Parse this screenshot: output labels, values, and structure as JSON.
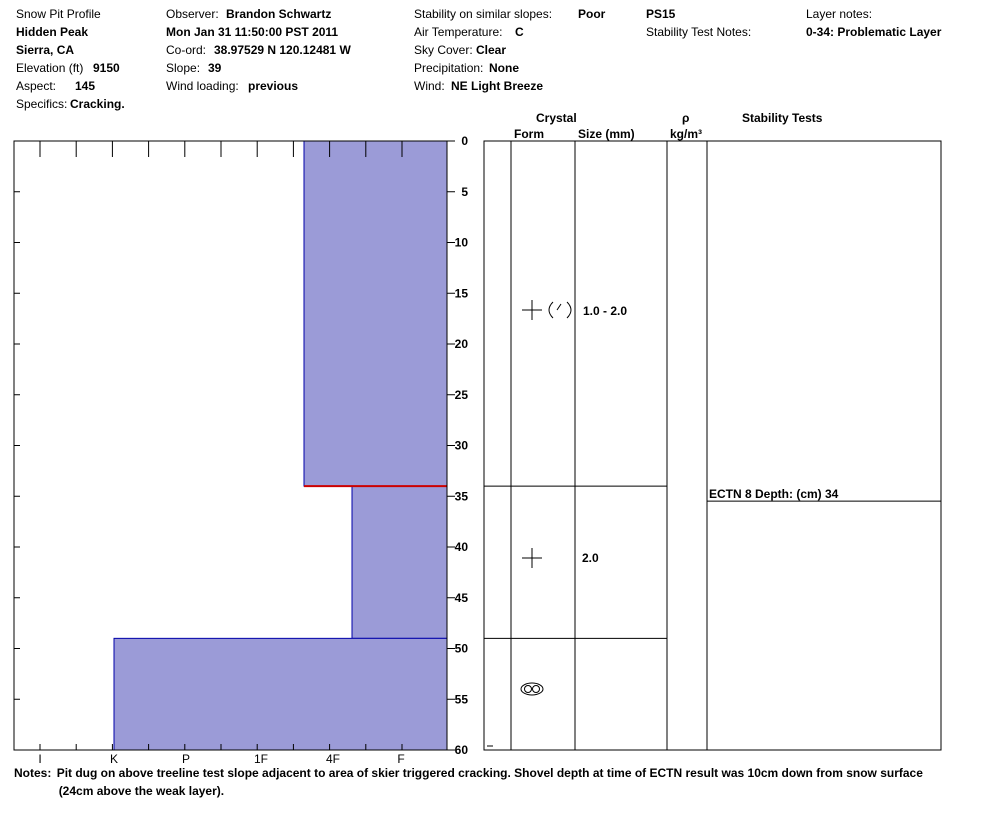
{
  "header": {
    "col1": {
      "title": "Snow Pit Profile",
      "location": "Hidden Peak",
      "region": "Sierra, CA",
      "elevation_label": "Elevation (ft)",
      "elevation_value": "9150",
      "aspect_label": "Aspect:",
      "aspect_value": "145",
      "specifics_label": "Specifics:",
      "specifics_value": "Cracking."
    },
    "col2": {
      "observer_label": "Observer:",
      "observer_value": "Brandon Schwartz",
      "datetime": "Mon Jan 31 11:50:00 PST 2011",
      "coord_label": "Co-ord:",
      "coord_value": "38.97529 N 120.12481 W",
      "slope_label": "Slope:",
      "slope_value": "39",
      "wind_loading_label": "Wind loading:",
      "wind_loading_value": "previous"
    },
    "col3": {
      "stability_label": "Stability on similar slopes:",
      "stability_value": "Poor",
      "air_temp_label": "Air Temperature:",
      "air_temp_value": "C",
      "sky_label": "Sky Cover:",
      "sky_value": "Clear",
      "precip_label": "Precipitation:",
      "precip_value": "None",
      "wind_label": "Wind:",
      "wind_value": "NE Light Breeze"
    },
    "col4": {
      "pit_id": "PS15",
      "stability_notes_label": "Stability Test Notes:"
    },
    "col5": {
      "layer_notes_label": "Layer notes:",
      "layer_notes_value": "0-34: Problematic Layer"
    }
  },
  "table_headers": {
    "crystal": "Crystal",
    "form": "Form",
    "size": "Size (mm)",
    "rho": "ρ",
    "density_unit": "kg/m³",
    "stability_tests": "Stability Tests"
  },
  "chart_data": {
    "type": "bar",
    "orientation": "horizontal-hardness-profile",
    "depth_axis": {
      "label": "",
      "min": 0,
      "max": 60,
      "ticks": [
        0,
        5,
        10,
        15,
        20,
        25,
        30,
        35,
        40,
        45,
        50,
        55,
        60
      ],
      "direction": "down"
    },
    "hardness_axis": {
      "ticks": [
        "I",
        "K",
        "P",
        "1F",
        "4F",
        "F"
      ],
      "direction": "right-to-left"
    },
    "layers": [
      {
        "top": 0,
        "bottom": 34,
        "hardness": "4F+",
        "form_icon": "faceted-rounded",
        "size": "1.0 - 2.0",
        "critical_bottom": true
      },
      {
        "top": 34,
        "bottom": 49,
        "hardness": "F+",
        "form_icon": "precipitation-particles",
        "size": "2.0",
        "critical_bottom": false
      },
      {
        "top": 49,
        "bottom": 60,
        "hardness": "K",
        "form_icon": "melt-forms",
        "size": "",
        "critical_bottom": false
      }
    ],
    "stability_tests": [
      {
        "depth": 34,
        "label": "ECTN 8   Depth: (cm) 34"
      }
    ],
    "colors": {
      "layer_fill": "#9b9bd7",
      "layer_border": "#0000aa",
      "critical_line": "#cc0000"
    }
  },
  "notes": {
    "label": "Notes:",
    "text": "Pit dug on above treeline test slope adjacent to area of skier triggered cracking. Shovel depth at time of ECTN result was 10cm down from snow surface (24cm above the weak layer)."
  }
}
